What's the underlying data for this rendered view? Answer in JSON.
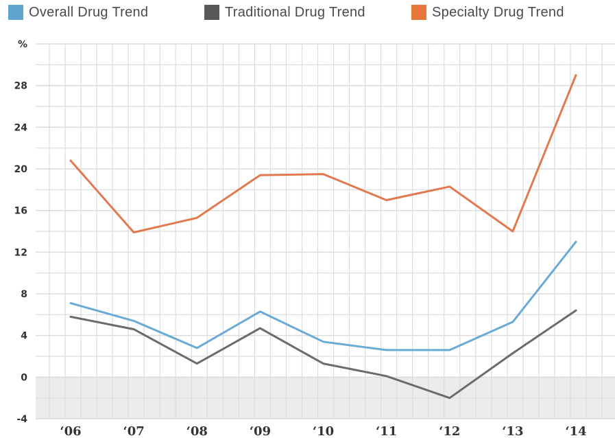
{
  "legend": [
    {
      "label": "Overall Drug Trend",
      "color": "#5fa3d0"
    },
    {
      "label": "Traditional Drug Trend",
      "color": "#585858"
    },
    {
      "label": "Specialty Drug Trend",
      "color": "#e8783a"
    }
  ],
  "chart_data": {
    "type": "line",
    "title": "",
    "xlabel": "",
    "ylabel": "%",
    "x": [
      "‘06",
      "‘07",
      "‘08",
      "‘09",
      "‘10",
      "‘11",
      "‘12",
      "‘13",
      "‘14"
    ],
    "y_ticks": [
      "%",
      "28",
      "24",
      "20",
      "16",
      "12",
      "8",
      "4",
      "0",
      "-4"
    ],
    "ylim": [
      -4,
      32
    ],
    "grid": true,
    "legend_position": "top",
    "series": [
      {
        "name": "Overall Drug Trend",
        "color": "#6aaad4",
        "values": [
          7.1,
          5.4,
          2.8,
          6.3,
          3.4,
          2.6,
          2.6,
          5.3,
          13.0
        ]
      },
      {
        "name": "Traditional Drug Trend",
        "color": "#6b6b6b",
        "values": [
          5.8,
          4.6,
          1.3,
          4.7,
          1.3,
          0.1,
          -2.0,
          2.3,
          6.4
        ]
      },
      {
        "name": "Specialty Drug Trend",
        "color": "#e07a4e",
        "values": [
          20.8,
          13.9,
          15.3,
          19.4,
          19.5,
          17.0,
          18.3,
          14.0,
          29.0
        ]
      }
    ]
  }
}
